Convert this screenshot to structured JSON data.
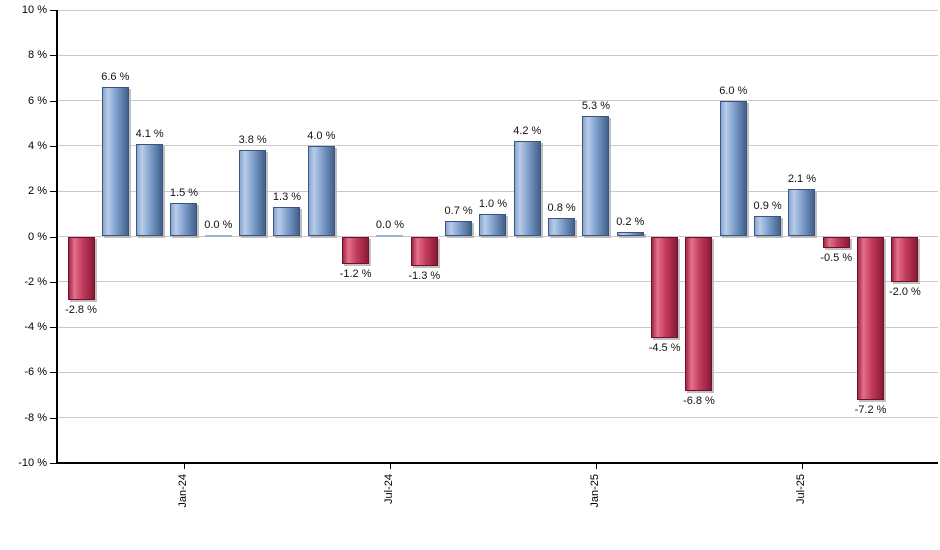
{
  "chart_data": {
    "type": "bar",
    "title": "",
    "xlabel": "",
    "ylabel": "",
    "unit": "%",
    "ylim": [
      -10,
      10
    ],
    "grid": true,
    "y_tick_labels": [
      "10 %",
      "8 %",
      "6 %",
      "4 %",
      "2 %",
      "0 %",
      "-2 %",
      "-4 %",
      "-6 %",
      "-8 %",
      "-10 %"
    ],
    "y_tick_values": [
      10,
      8,
      6,
      4,
      2,
      0,
      -2,
      -4,
      -6,
      -8,
      -10
    ],
    "x_tick_labels": [
      "Jan-24",
      "Jul-24",
      "Jan-25",
      "Jul-25"
    ],
    "points": [
      {
        "month": "Oct-23",
        "value": -2.8,
        "label": "-2.8 %"
      },
      {
        "month": "Nov-23",
        "value": 6.6,
        "label": "6.6 %"
      },
      {
        "month": "Dec-23",
        "value": 4.1,
        "label": "4.1 %"
      },
      {
        "month": "Jan-24",
        "value": 1.5,
        "label": "1.5 %"
      },
      {
        "month": "Feb-24",
        "value": 0.0,
        "label": "0.0 %"
      },
      {
        "month": "Mar-24",
        "value": 3.8,
        "label": "3.8 %"
      },
      {
        "month": "Apr-24",
        "value": 1.3,
        "label": "1.3 %"
      },
      {
        "month": "May-24",
        "value": 4.0,
        "label": "4.0 %"
      },
      {
        "month": "Jun-24",
        "value": -1.2,
        "label": "-1.2 %"
      },
      {
        "month": "Jul-24",
        "value": 0.0,
        "label": "0.0 %"
      },
      {
        "month": "Aug-24",
        "value": -1.3,
        "label": "-1.3 %"
      },
      {
        "month": "Sep-24",
        "value": 0.7,
        "label": "0.7 %"
      },
      {
        "month": "Oct-24",
        "value": 1.0,
        "label": "1.0 %"
      },
      {
        "month": "Nov-24",
        "value": 4.2,
        "label": "4.2 %"
      },
      {
        "month": "Dec-24",
        "value": 0.8,
        "label": "0.8 %"
      },
      {
        "month": "Jan-25",
        "value": 5.3,
        "label": "5.3 %"
      },
      {
        "month": "Feb-25",
        "value": 0.2,
        "label": "0.2 %"
      },
      {
        "month": "Mar-25",
        "value": -4.5,
        "label": "-4.5 %"
      },
      {
        "month": "Apr-25",
        "value": -6.8,
        "label": "-6.8 %"
      },
      {
        "month": "May-25",
        "value": 6.0,
        "label": "6.0 %"
      },
      {
        "month": "Jun-25",
        "value": 0.9,
        "label": "0.9 %"
      },
      {
        "month": "Jul-25",
        "value": 2.1,
        "label": "2.1 %"
      },
      {
        "month": "Aug-25",
        "value": -0.5,
        "label": "-0.5 %"
      },
      {
        "month": "Sep-25",
        "value": -7.2,
        "label": "-7.2 %"
      },
      {
        "month": "Oct-25",
        "value": -2.0,
        "label": "-2.0 %"
      }
    ],
    "colors": {
      "positive_bar": "#7b9dcb",
      "negative_bar": "#c23a5c",
      "gridline": "#c9c9c9",
      "axis": "#000000",
      "text": "#000000",
      "background": "#ffffff"
    },
    "legend": null
  }
}
